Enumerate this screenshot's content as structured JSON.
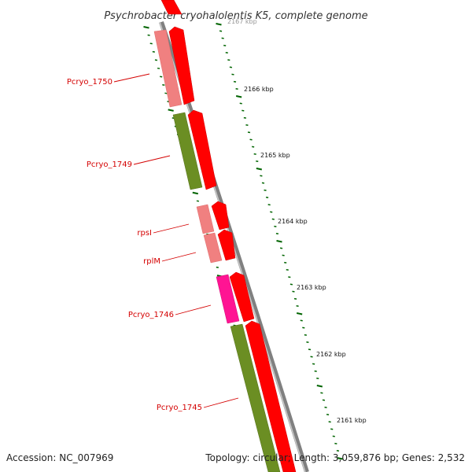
{
  "title": "Psychrobacter cryohalolentis K5, complete genome",
  "footer": {
    "accession": "Accession: NC_007969",
    "summary": "Topology: circular; Length: 3,059,876 bp; Genes: 2,532"
  },
  "ruler": {
    "labels": [
      "2167 kbp",
      "2166 kbp",
      "2165 kbp",
      "2164 kbp",
      "2163 kbp",
      "2162 kbp",
      "2161 kbp"
    ]
  },
  "genes": [
    {
      "name": "Pcryo_1750",
      "color": "#f08080"
    },
    {
      "name": "Pcryo_1749",
      "color": "#6b8e23"
    },
    {
      "name": "rpsI",
      "color": "#f08080"
    },
    {
      "name": "rplM",
      "color": "#f08080"
    },
    {
      "name": "Pcryo_1746",
      "color": "#ff1493"
    },
    {
      "name": "Pcryo_1745",
      "color": "#6b8e23"
    }
  ],
  "colors": {
    "backbone": "#808080",
    "tick": "#006400",
    "forward_strand": "#ff0000",
    "label": "#d40000"
  }
}
